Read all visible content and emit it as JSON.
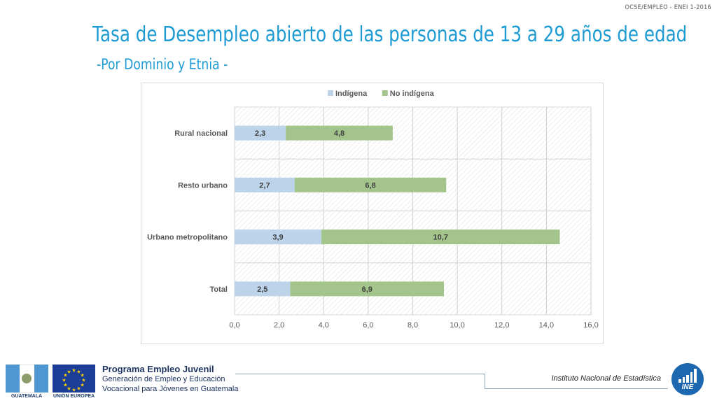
{
  "header": {
    "tag": "OCSE/EMPLEO -  ENEI 1-2016",
    "title": "Tasa de Desempleo abierto de las personas de 13 a 29 años de edad",
    "subtitle": "-Por Dominio y Etnia -"
  },
  "chart_data": {
    "type": "bar",
    "orientation": "horizontal",
    "stacked": true,
    "categories": [
      "Rural nacional",
      "Resto urbano",
      "Urbano metropolitano",
      "Total"
    ],
    "series": [
      {
        "name": "Indígena",
        "values": [
          2.3,
          2.7,
          3.9,
          2.5
        ],
        "color": "#bcd3ea"
      },
      {
        "name": "No indígena",
        "values": [
          4.8,
          6.8,
          10.7,
          6.9
        ],
        "color": "#a3c58b"
      }
    ],
    "xlim": [
      0,
      16
    ],
    "xticks": [
      "0,0",
      "2,0",
      "4,0",
      "6,0",
      "8,0",
      "10,0",
      "12,0",
      "14,0",
      "16,0"
    ],
    "data_labels": [
      [
        "2,3",
        "2,7",
        "3,9",
        "2,5"
      ],
      [
        "4,8",
        "6,8",
        "10,7",
        "6,9"
      ]
    ],
    "legend_position": "top",
    "grid": true,
    "background_pattern": "diagonal-hatch"
  },
  "footer": {
    "flag_label_gt": "GUATEMALA",
    "flag_label_eu": "UNIÓN EUROPEA",
    "program_title": "Programa Empleo Juvenil",
    "program_line1": "Generación de Empleo y Educación",
    "program_line2": "Vocacional para Jóvenes en Guatemala",
    "institute": "Instituto Nacional de Estadística",
    "logo_text": "INE",
    "accent_color": "#1e9bd3"
  }
}
